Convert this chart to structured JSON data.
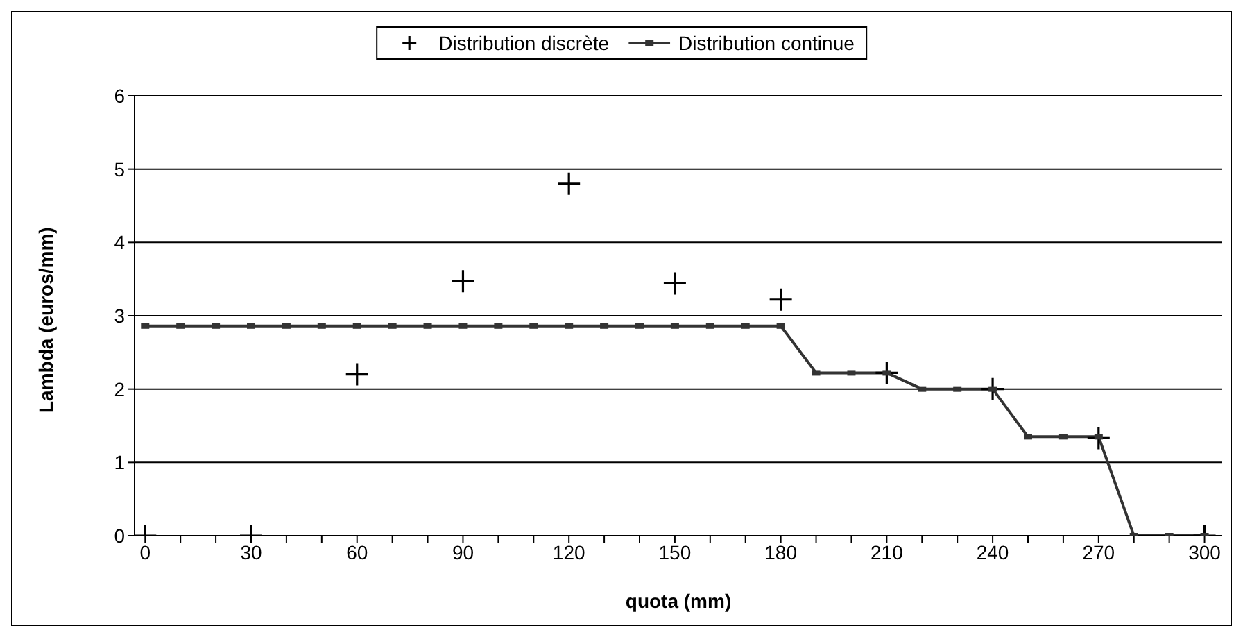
{
  "chart_data": {
    "type": "line",
    "xlabel": "quota (mm)",
    "ylabel": "Lambda (euros/mm)",
    "series": [
      {
        "name": "Distribution discrète",
        "type": "scatter",
        "marker": "cross",
        "color": "#000000",
        "x": [
          0,
          30,
          60,
          90,
          120,
          150,
          180,
          210,
          240,
          270,
          300
        ],
        "values": [
          0,
          0,
          2.2,
          3.47,
          4.8,
          3.44,
          3.22,
          2.22,
          2.0,
          1.33,
          0
        ]
      },
      {
        "name": "Distribution continue",
        "marker": "square",
        "color": "#333333",
        "x": [
          0,
          10,
          20,
          30,
          40,
          50,
          60,
          70,
          80,
          90,
          100,
          110,
          120,
          130,
          140,
          150,
          160,
          170,
          180,
          190,
          200,
          210,
          220,
          230,
          240,
          250,
          260,
          270,
          280,
          290,
          300
        ],
        "values": [
          2.86,
          2.86,
          2.86,
          2.86,
          2.86,
          2.86,
          2.86,
          2.86,
          2.86,
          2.86,
          2.86,
          2.86,
          2.86,
          2.86,
          2.86,
          2.86,
          2.86,
          2.86,
          2.86,
          2.22,
          2.22,
          2.22,
          2.0,
          2.0,
          2.0,
          1.35,
          1.35,
          1.35,
          0,
          0,
          0
        ]
      }
    ],
    "xlim": [
      -3,
      305
    ],
    "xticks": [
      0,
      {
        "value": 10,
        "label": null
      },
      {
        "value": 20,
        "label": null
      },
      30,
      {
        "value": 40,
        "label": null
      },
      {
        "value": 50,
        "label": null
      },
      60,
      {
        "value": 70,
        "label": null
      },
      {
        "value": 80,
        "label": null
      },
      90,
      {
        "value": 100,
        "label": null
      },
      {
        "value": 110,
        "label": null
      },
      120,
      {
        "value": 130,
        "label": null
      },
      {
        "value": 140,
        "label": null
      },
      150,
      {
        "value": 160,
        "label": null
      },
      {
        "value": 170,
        "label": null
      },
      180,
      {
        "value": 190,
        "label": null
      },
      {
        "value": 200,
        "label": null
      },
      210,
      {
        "value": 220,
        "label": null
      },
      {
        "value": 230,
        "label": null
      },
      240,
      {
        "value": 250,
        "label": null
      },
      {
        "value": 260,
        "label": null
      },
      270,
      {
        "value": 280,
        "label": null
      },
      {
        "value": 290,
        "label": null
      },
      300
    ],
    "ylim": [
      0,
      6
    ],
    "yticks": [
      0,
      1,
      2,
      3,
      4,
      5,
      6
    ],
    "grid": "y",
    "legend": "top",
    "line_style": "solid"
  }
}
